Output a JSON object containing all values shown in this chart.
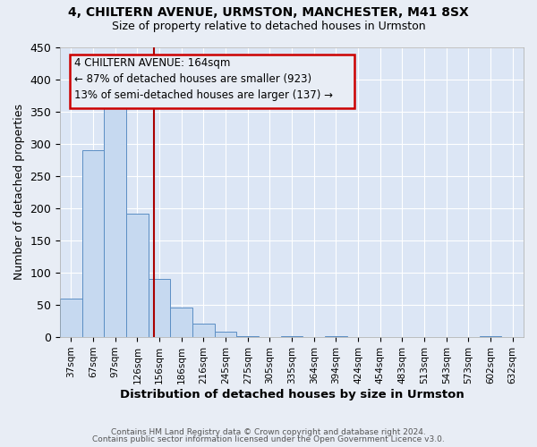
{
  "title": "4, CHILTERN AVENUE, URMSTON, MANCHESTER, M41 8SX",
  "subtitle": "Size of property relative to detached houses in Urmston",
  "xlabel": "Distribution of detached houses by size in Urmston",
  "ylabel": "Number of detached properties",
  "bin_labels": [
    "37sqm",
    "67sqm",
    "97sqm",
    "126sqm",
    "156sqm",
    "186sqm",
    "216sqm",
    "245sqm",
    "275sqm",
    "305sqm",
    "335sqm",
    "364sqm",
    "394sqm",
    "424sqm",
    "454sqm",
    "483sqm",
    "513sqm",
    "543sqm",
    "573sqm",
    "602sqm",
    "632sqm"
  ],
  "bin_values": [
    60,
    290,
    355,
    192,
    90,
    46,
    21,
    9,
    2,
    0,
    2,
    0,
    2,
    0,
    0,
    0,
    0,
    0,
    0,
    2,
    0
  ],
  "bar_color": "#c6d9f0",
  "bar_edge_color": "#5b8ec4",
  "vline_x_index": 4.27,
  "vline_color": "#aa0000",
  "annotation_title": "4 CHILTERN AVENUE: 164sqm",
  "annotation_line1": "← 87% of detached houses are smaller (923)",
  "annotation_line2": "13% of semi-detached houses are larger (137) →",
  "annotation_box_edge_color": "#cc0000",
  "ylim": [
    0,
    450
  ],
  "yticks": [
    0,
    50,
    100,
    150,
    200,
    250,
    300,
    350,
    400,
    450
  ],
  "footer_line1": "Contains HM Land Registry data © Crown copyright and database right 2024.",
  "footer_line2": "Contains public sector information licensed under the Open Government Licence v3.0.",
  "fig_background_color": "#e8edf5",
  "plot_background_color": "#dce6f5",
  "grid_color": "#ffffff"
}
